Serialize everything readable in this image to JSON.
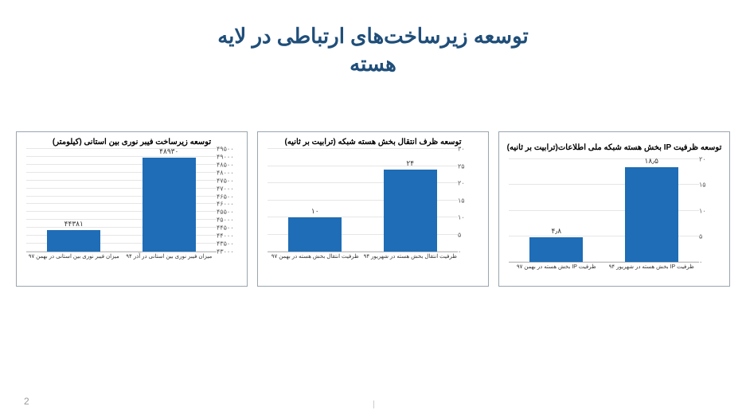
{
  "title": {
    "line1": "توسعه زیرساخت‌های ارتباطی در لایه",
    "line2": "هسته",
    "color": "#1f4e79",
    "fontsize": 26
  },
  "pageNumber": "2",
  "charts": [
    {
      "type": "bar",
      "title": "توسعه زیرساخت فیبر نوری بین استانی (کیلومتر)",
      "title_lines": 1,
      "bar_color": "#1e6db6",
      "ylim": [
        43000,
        49500
      ],
      "yticks": [
        43000,
        43500,
        44000,
        44500,
        45000,
        45500,
        46000,
        46500,
        47000,
        47500,
        48000,
        48500,
        49000,
        49500
      ],
      "ytick_labels": [
        "۴۳۰۰۰",
        "۴۳۵۰۰",
        "۴۴۰۰۰",
        "۴۴۵۰۰",
        "۴۵۰۰۰",
        "۴۵۵۰۰",
        "۴۶۰۰۰",
        "۴۶۵۰۰",
        "۴۷۰۰۰",
        "۴۷۵۰۰",
        "۴۸۰۰۰",
        "۴۸۵۰۰",
        "۴۹۰۰۰",
        "۴۹۵۰۰"
      ],
      "bars": [
        {
          "value": 44381,
          "label": "۴۴۳۸۱",
          "xlabel": "میزان فیبر نوری بین استانی در آذر ۹۴"
        },
        {
          "value": 48930,
          "label": "۴۸۹۳۰",
          "xlabel": "میزان فیبر نوری بین استانی در بهمن ۹۷"
        }
      ]
    },
    {
      "type": "bar",
      "title": "توسعه ظرف انتقال بخش هسته شبکه (ترابیت بر ثانیه)",
      "title_lines": 1,
      "bar_color": "#1e6db6",
      "ylim": [
        0,
        30
      ],
      "yticks": [
        0,
        5,
        10,
        15,
        20,
        25,
        30
      ],
      "ytick_labels": [
        "۰",
        "۵",
        "۱۰",
        "۱۵",
        "۲۰",
        "۲۵",
        "۳۰"
      ],
      "bars": [
        {
          "value": 10,
          "label": "۱۰",
          "xlabel": "ظرفیت انتقال بخش هسته در شهریور ۹۴"
        },
        {
          "value": 24,
          "label": "۲۴",
          "xlabel": "ظرفیت انتقال بخش هسته در  بهمن ۹۷"
        }
      ]
    },
    {
      "type": "bar",
      "title": "توسعه ظرفیت IP  بخش هسته شبکه ملی اطلاعات(ترابیت بر ثانیه)",
      "title_lines": 2,
      "bar_color": "#1e6db6",
      "ylim": [
        0,
        20
      ],
      "yticks": [
        0,
        5,
        10,
        15,
        20
      ],
      "ytick_labels": [
        "۰",
        "۵",
        "۱۰",
        "۱۵",
        "۲۰"
      ],
      "bars": [
        {
          "value": 4.8,
          "label": "۴٫۸",
          "xlabel": "ظرفیت IP بخش هسته در شهریور ۹۴"
        },
        {
          "value": 18.5,
          "label": "۱۸٫۵",
          "xlabel": "ظرفیت IP بخش هسته در بهمن ۹۷"
        }
      ]
    }
  ],
  "style": {
    "background": "#ffffff",
    "grid_color": "#e6e6e6",
    "axis_color": "#bfbfbf",
    "bar_width_pct": 28
  }
}
